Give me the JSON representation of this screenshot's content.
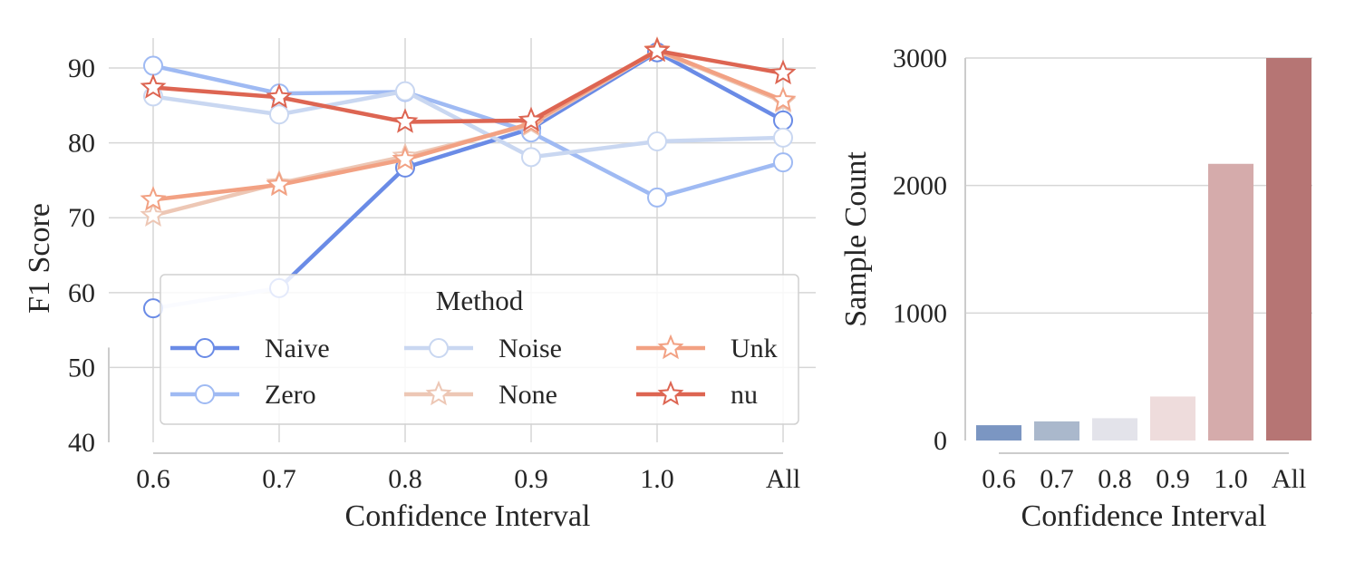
{
  "chart_data": [
    {
      "type": "line",
      "categories": [
        "0.6",
        "0.7",
        "0.8",
        "0.9",
        "1.0",
        "All"
      ],
      "xlabel": "Confidence Interval",
      "ylabel": "F1 Score",
      "ylim": [
        40,
        94
      ],
      "yticks": [
        40,
        50,
        60,
        70,
        80,
        90
      ],
      "grid": true,
      "legend": {
        "title": "Method",
        "placement": "lower-center",
        "columns": 3
      },
      "series": [
        {
          "name": "Naive",
          "marker": "circle",
          "color": "#6a8be6",
          "values": [
            57.9,
            60.6,
            76.7,
            81.9,
            92.1,
            83.0
          ],
          "segment_colors": [
            "#e3e9fb",
            "#6a8be6",
            "#6a8be6",
            "#6a8be6",
            "#6a8be6"
          ]
        },
        {
          "name": "Zero",
          "marker": "circle",
          "color": "#9fbaf3",
          "values": [
            90.3,
            86.6,
            86.8,
            81.4,
            72.7,
            77.4
          ]
        },
        {
          "name": "Noise",
          "marker": "circle",
          "color": "#c9d7f1",
          "values": [
            86.2,
            83.8,
            86.9,
            78.1,
            80.2,
            80.7
          ]
        },
        {
          "name": "None",
          "marker": "star",
          "color": "#edc7b5",
          "values": [
            70.3,
            74.6,
            78.2,
            82.4,
            92.3,
            85.5
          ]
        },
        {
          "name": "Unk",
          "marker": "star",
          "color": "#f2a183",
          "values": [
            72.4,
            74.4,
            77.8,
            82.6,
            92.4,
            85.7
          ]
        },
        {
          "name": "nu",
          "marker": "star",
          "color": "#dd6552",
          "values": [
            87.4,
            86.1,
            82.8,
            83.0,
            92.3,
            89.3
          ]
        }
      ]
    },
    {
      "type": "bar",
      "categories": [
        "0.6",
        "0.7",
        "0.8",
        "0.9",
        "1.0",
        "All"
      ],
      "values": [
        120,
        150,
        175,
        345,
        2170,
        3000
      ],
      "colors": [
        "#7b96c2",
        "#aab8cc",
        "#e3e3ea",
        "#eedcdc",
        "#d5abab",
        "#b67574"
      ],
      "xlabel": "Confidence Interval",
      "ylabel": "Sample Count",
      "ylim": [
        0,
        3000
      ],
      "yticks": [
        0,
        1000,
        2000,
        3000
      ],
      "grid": true
    }
  ]
}
